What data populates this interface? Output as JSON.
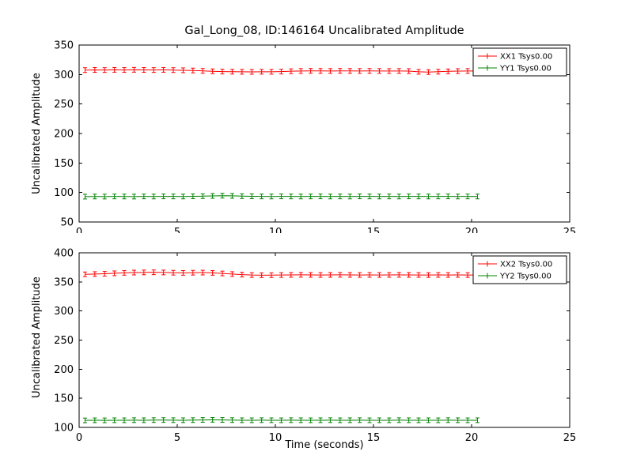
{
  "figure": {
    "title": "Gal_Long_08, ID:146164 Uncalibrated Amplitude",
    "xlabel": "Time (seconds)",
    "ylabel": "Uncalibrated Amplitude"
  },
  "chart_data": [
    {
      "type": "line",
      "title": "Gal_Long_08, ID:146164 Uncalibrated Amplitude",
      "ylabel": "Uncalibrated Amplitude",
      "xlim": [
        0,
        25
      ],
      "ylim": [
        50,
        350
      ],
      "xticks": [
        0,
        5,
        10,
        15,
        20,
        25
      ],
      "yticks": [
        50,
        100,
        150,
        200,
        250,
        300,
        350
      ],
      "grid": false,
      "legend_position": "upper right",
      "x": [
        0.3,
        0.8,
        1.3,
        1.8,
        2.3,
        2.8,
        3.3,
        3.8,
        4.3,
        4.8,
        5.3,
        5.8,
        6.3,
        6.8,
        7.3,
        7.8,
        8.3,
        8.8,
        9.3,
        9.8,
        10.3,
        10.8,
        11.3,
        11.8,
        12.3,
        12.8,
        13.3,
        13.8,
        14.3,
        14.8,
        15.3,
        15.8,
        16.3,
        16.8,
        17.3,
        17.8,
        18.3,
        18.8,
        19.3,
        19.8,
        20.3
      ],
      "series": [
        {
          "name": "XX1 Tsys0.00",
          "color": "#ff0000",
          "yerr": 4,
          "y": [
            307.5,
            307.8,
            307.6,
            307.9,
            307.7,
            308.0,
            307.8,
            307.6,
            307.9,
            307.5,
            307.2,
            306.8,
            306.2,
            305.5,
            305.0,
            304.8,
            304.6,
            304.5,
            304.7,
            304.6,
            305.0,
            305.6,
            306.0,
            306.2,
            306.1,
            306.0,
            306.2,
            306.1,
            306.0,
            306.1,
            306.0,
            305.9,
            306.0,
            305.8,
            304.6,
            304.2,
            304.8,
            305.4,
            305.8,
            306.0,
            305.9
          ]
        },
        {
          "name": "YY1 Tsys0.00",
          "color": "#008000",
          "yerr": 4,
          "y": [
            93.0,
            93.2,
            93.1,
            93.3,
            93.2,
            93.1,
            93.3,
            93.2,
            93.4,
            93.3,
            93.2,
            93.5,
            93.8,
            94.2,
            94.6,
            94.3,
            93.8,
            93.5,
            93.3,
            93.2,
            93.4,
            93.3,
            93.2,
            93.3,
            93.4,
            93.2,
            93.3,
            93.2,
            93.4,
            93.3,
            93.2,
            93.3,
            93.2,
            93.4,
            93.3,
            93.2,
            93.3,
            93.4,
            93.2,
            93.3,
            93.2
          ]
        }
      ]
    },
    {
      "type": "line",
      "ylabel": "Uncalibrated Amplitude",
      "xlabel": "Time (seconds)",
      "xlim": [
        0,
        25
      ],
      "ylim": [
        100,
        400
      ],
      "xticks": [
        0,
        5,
        10,
        15,
        20,
        25
      ],
      "yticks": [
        100,
        150,
        200,
        250,
        300,
        350,
        400
      ],
      "grid": false,
      "legend_position": "upper right",
      "x": [
        0.3,
        0.8,
        1.3,
        1.8,
        2.3,
        2.8,
        3.3,
        3.8,
        4.3,
        4.8,
        5.3,
        5.8,
        6.3,
        6.8,
        7.3,
        7.8,
        8.3,
        8.8,
        9.3,
        9.8,
        10.3,
        10.8,
        11.3,
        11.8,
        12.3,
        12.8,
        13.3,
        13.8,
        14.3,
        14.8,
        15.3,
        15.8,
        16.3,
        16.8,
        17.3,
        17.8,
        18.3,
        18.8,
        19.3,
        19.8,
        20.3
      ],
      "series": [
        {
          "name": "XX2 Tsys0.00",
          "color": "#ff0000",
          "yerr": 4,
          "y": [
            363.0,
            363.5,
            364.0,
            364.8,
            365.5,
            366.0,
            366.3,
            366.5,
            366.2,
            365.8,
            365.5,
            365.8,
            366.0,
            365.5,
            364.5,
            363.5,
            362.5,
            361.8,
            361.5,
            361.6,
            361.8,
            362.0,
            362.1,
            362.0,
            361.9,
            362.0,
            362.1,
            362.0,
            361.9,
            362.0,
            361.9,
            362.0,
            362.1,
            362.0,
            361.9,
            361.8,
            362.0,
            361.9,
            362.0,
            361.8,
            361.9
          ]
        },
        {
          "name": "YY2 Tsys0.00",
          "color": "#008000",
          "yerr": 4,
          "y": [
            112.0,
            112.2,
            112.1,
            112.3,
            112.2,
            112.4,
            112.3,
            112.5,
            112.6,
            112.4,
            112.3,
            112.5,
            112.8,
            113.0,
            112.8,
            112.5,
            112.3,
            112.2,
            112.4,
            112.3,
            112.2,
            112.4,
            112.3,
            112.2,
            112.3,
            112.4,
            112.2,
            112.3,
            112.4,
            112.2,
            112.3,
            112.2,
            112.4,
            112.3,
            112.2,
            112.3,
            112.2,
            112.4,
            112.3,
            112.2,
            112.3
          ]
        }
      ]
    }
  ]
}
